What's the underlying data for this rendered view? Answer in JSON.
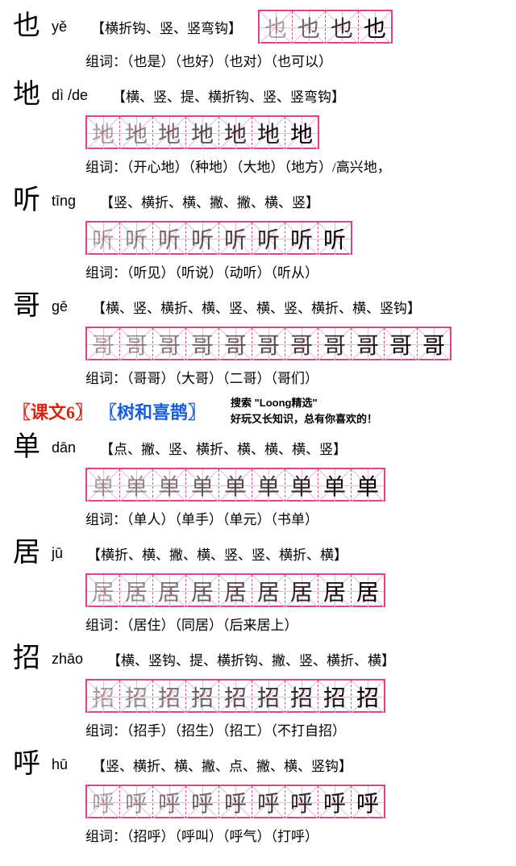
{
  "entries": [
    {
      "hanzi": "也",
      "pinyin": "yě",
      "strokes": "【横折钩、竖、竖弯钩】",
      "gridCount": 4,
      "inline": true,
      "gridLastChar": "也",
      "words": "组词：（也是）（也好）（也对）（也可以）"
    },
    {
      "hanzi": "地",
      "pinyin": "dì /de",
      "strokes": "【横、竖、提、横折钩、竖、竖弯钩】",
      "gridCount": 7,
      "inline": false,
      "gridLastChar": "地",
      "words": "组词：（开心地）（种地）（大地）（地方）/高兴地，"
    },
    {
      "hanzi": "听",
      "pinyin": "tīng",
      "strokes": "【竖、横折、横、撇、撇、横、竖】",
      "gridCount": 8,
      "inline": false,
      "gridLastChar": "听",
      "words": "组词：（听见）（听说）（动听）（听从）"
    },
    {
      "hanzi": "哥",
      "pinyin": "gē",
      "strokes": "【横、竖、横折、横、竖、横、竖、横折、横、竖钩】",
      "gridCount": 11,
      "inline": false,
      "gridLastChar": "哥",
      "words": "组词：（哥哥）（大哥）（二哥）（哥们）"
    }
  ],
  "sectionHead": {
    "lesson": "〖课文6〗",
    "title": "〖树和喜鹊〗",
    "wm1": "搜索 \"Loong精选\"",
    "wm2": "好玩又长知识，总有你喜欢的！"
  },
  "entries2": [
    {
      "hanzi": "单",
      "pinyin": "dān",
      "strokes": "【点、撇、竖、横折、横、横、横、竖】",
      "gridCount": 9,
      "inline": false,
      "gridLastChar": "单",
      "words": "组词：（单人）（单手）（单元）（书单）"
    },
    {
      "hanzi": "居",
      "pinyin": "jū",
      "strokes": "【横折、横、撇、横、竖、竖、横折、横】",
      "gridCount": 9,
      "inline": false,
      "gridLastChar": "居",
      "words": "组词：（居住）（同居）（后来居上）"
    },
    {
      "hanzi": "招",
      "pinyin": "zhāo",
      "strokes": "【横、竖钩、提、横折钩、撇、竖、横折、横】",
      "gridCount": 9,
      "inline": false,
      "gridLastChar": "招",
      "words": "组词：（招手）（招生）（招工）（不打自招）"
    },
    {
      "hanzi": "呼",
      "pinyin": "hū",
      "strokes": "【竖、横折、横、撇、点、撇、横、竖钩】",
      "gridCount": 9,
      "inline": false,
      "gridLastChar": "呼",
      "words": "组词：（招呼）（呼叫）（呼气）（打呼）"
    }
  ]
}
